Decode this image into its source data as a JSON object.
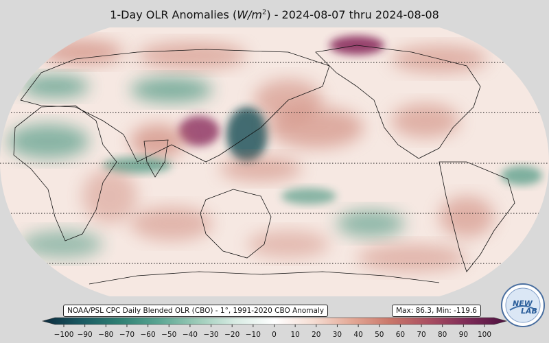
{
  "title": {
    "prefix": "1-Day OLR Anomalies (",
    "units_var": "W/m",
    "units_exp": "2",
    "suffix": ") - 2024-08-07 thru 2024-08-08"
  },
  "source_label": "NOAA/PSL CPC Daily Blended OLR (CBO) - 1°, 1991-2020 CBO Anomaly",
  "stats_label": "Max: 86.3,  Min: -119.6",
  "logo": {
    "text_a": "NEW",
    "text_b": "LAB"
  },
  "colorbar": {
    "ticks": [
      "−100",
      "−90",
      "−80",
      "−70",
      "−60",
      "−50",
      "−40",
      "−30",
      "−20",
      "−10",
      "0",
      "10",
      "20",
      "30",
      "40",
      "50",
      "60",
      "70",
      "80",
      "90",
      "100"
    ],
    "min": -100,
    "max": 100,
    "stops": [
      "#0d2b3e",
      "#1a5a62",
      "#2f8073",
      "#5aa592",
      "#9ccbb8",
      "#d9ece4",
      "#ffffff",
      "#f5ddd3",
      "#e3a896",
      "#c9776a",
      "#a94e61",
      "#7d2b57",
      "#4e1140"
    ]
  },
  "map_colors": {
    "positive": "#c97a6c",
    "strong_positive": "#8b2f5e",
    "negative": "#2f8a72",
    "strong_negative": "#134e55"
  }
}
